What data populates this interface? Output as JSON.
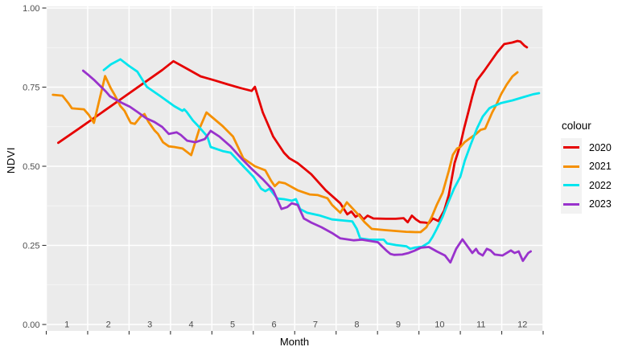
{
  "figure": {
    "y_title": "NDVI",
    "x_title": "Month",
    "background": "#FFFFFF",
    "panel_background": "#EBEBEB",
    "gridline_color": "#FFFFFF",
    "axis_text_color": "#4D4D4D",
    "tick_color": "#333333"
  },
  "legend": {
    "title": "colour",
    "key_background": "#F2F2F2",
    "entries": [
      {
        "label": "2020",
        "color": "#E60000"
      },
      {
        "label": "2021",
        "color": "#F59000"
      },
      {
        "label": "2022",
        "color": "#00E5EE"
      },
      {
        "label": "2023",
        "color": "#9932CC"
      }
    ]
  },
  "chart_data": {
    "type": "line",
    "title": "",
    "xlabel": "Month",
    "ylabel": "NDVI",
    "xlim": [
      1,
      13
    ],
    "ylim": [
      0,
      1
    ],
    "grid": true,
    "legend_position": "right",
    "y_major_ticks": [
      0,
      0.25,
      0.5,
      0.75,
      1.0
    ],
    "y_tick_labels": [
      "0.00",
      "0.25",
      "0.50",
      "0.75",
      "1.00"
    ],
    "y_minor_ticks": [
      0.125,
      0.375,
      0.625,
      0.875
    ],
    "x_gridlines": [
      1,
      2,
      3,
      4,
      5,
      6,
      7,
      8,
      9,
      10,
      11,
      12,
      13
    ],
    "x_tick_labels": [
      "1",
      "2",
      "3",
      "4",
      "5",
      "6",
      "7",
      "8",
      "9",
      "10",
      "11",
      "12"
    ],
    "x_label_positions": [
      1.5,
      2.5,
      3.5,
      4.5,
      5.5,
      6.5,
      7.5,
      8.5,
      9.5,
      10.5,
      11.5,
      12.5
    ],
    "series": [
      {
        "name": "2020",
        "color": "#E60000",
        "points": [
          [
            1.29,
            0.574
          ],
          [
            1.8,
            0.62
          ],
          [
            2.3,
            0.666
          ],
          [
            2.8,
            0.712
          ],
          [
            3.3,
            0.758
          ],
          [
            3.8,
            0.804
          ],
          [
            4.07,
            0.832
          ],
          [
            4.4,
            0.808
          ],
          [
            4.73,
            0.784
          ],
          [
            5.05,
            0.772
          ],
          [
            5.38,
            0.759
          ],
          [
            5.67,
            0.748
          ],
          [
            5.96,
            0.738
          ],
          [
            6.04,
            0.751
          ],
          [
            6.23,
            0.67
          ],
          [
            6.48,
            0.594
          ],
          [
            6.74,
            0.543
          ],
          [
            6.87,
            0.525
          ],
          [
            7.07,
            0.51
          ],
          [
            7.4,
            0.475
          ],
          [
            7.75,
            0.424
          ],
          [
            8.1,
            0.383
          ],
          [
            8.27,
            0.348
          ],
          [
            8.37,
            0.357
          ],
          [
            8.47,
            0.34
          ],
          [
            8.56,
            0.348
          ],
          [
            8.66,
            0.332
          ],
          [
            8.76,
            0.344
          ],
          [
            8.9,
            0.335
          ],
          [
            9.2,
            0.334
          ],
          [
            9.44,
            0.334
          ],
          [
            9.63,
            0.336
          ],
          [
            9.73,
            0.323
          ],
          [
            9.83,
            0.344
          ],
          [
            9.93,
            0.332
          ],
          [
            10.03,
            0.323
          ],
          [
            10.15,
            0.322
          ],
          [
            10.24,
            0.32
          ],
          [
            10.34,
            0.335
          ],
          [
            10.47,
            0.327
          ],
          [
            10.61,
            0.36
          ],
          [
            10.72,
            0.409
          ],
          [
            10.86,
            0.51
          ],
          [
            11.0,
            0.568
          ],
          [
            11.09,
            0.619
          ],
          [
            11.19,
            0.67
          ],
          [
            11.29,
            0.721
          ],
          [
            11.4,
            0.771
          ],
          [
            11.58,
            0.802
          ],
          [
            11.73,
            0.83
          ],
          [
            11.89,
            0.86
          ],
          [
            12.06,
            0.886
          ],
          [
            12.26,
            0.891
          ],
          [
            12.38,
            0.896
          ],
          [
            12.45,
            0.894
          ],
          [
            12.55,
            0.881
          ],
          [
            12.61,
            0.876
          ]
        ]
      },
      {
        "name": "2021",
        "color": "#F59000",
        "points": [
          [
            1.16,
            0.726
          ],
          [
            1.39,
            0.723
          ],
          [
            1.53,
            0.7
          ],
          [
            1.62,
            0.683
          ],
          [
            1.91,
            0.68
          ],
          [
            2.03,
            0.662
          ],
          [
            2.15,
            0.637
          ],
          [
            2.42,
            0.785
          ],
          [
            2.56,
            0.746
          ],
          [
            2.65,
            0.726
          ],
          [
            2.79,
            0.69
          ],
          [
            2.89,
            0.675
          ],
          [
            2.98,
            0.652
          ],
          [
            3.04,
            0.637
          ],
          [
            3.14,
            0.634
          ],
          [
            3.28,
            0.657
          ],
          [
            3.37,
            0.665
          ],
          [
            3.47,
            0.64
          ],
          [
            3.61,
            0.614
          ],
          [
            3.7,
            0.602
          ],
          [
            3.82,
            0.576
          ],
          [
            3.96,
            0.563
          ],
          [
            4.09,
            0.561
          ],
          [
            4.29,
            0.556
          ],
          [
            4.5,
            0.535
          ],
          [
            4.7,
            0.619
          ],
          [
            4.87,
            0.67
          ],
          [
            5.26,
            0.627
          ],
          [
            5.51,
            0.594
          ],
          [
            5.76,
            0.525
          ],
          [
            6.04,
            0.5
          ],
          [
            6.29,
            0.487
          ],
          [
            6.43,
            0.454
          ],
          [
            6.52,
            0.437
          ],
          [
            6.62,
            0.45
          ],
          [
            6.77,
            0.446
          ],
          [
            7.07,
            0.424
          ],
          [
            7.36,
            0.411
          ],
          [
            7.56,
            0.409
          ],
          [
            7.79,
            0.399
          ],
          [
            7.9,
            0.378
          ],
          [
            8.1,
            0.353
          ],
          [
            8.26,
            0.386
          ],
          [
            8.53,
            0.348
          ],
          [
            8.69,
            0.323
          ],
          [
            8.86,
            0.302
          ],
          [
            9.21,
            0.298
          ],
          [
            9.69,
            0.293
          ],
          [
            9.92,
            0.292
          ],
          [
            10.04,
            0.292
          ],
          [
            10.18,
            0.307
          ],
          [
            10.31,
            0.34
          ],
          [
            10.43,
            0.378
          ],
          [
            10.57,
            0.416
          ],
          [
            10.72,
            0.485
          ],
          [
            10.82,
            0.536
          ],
          [
            10.92,
            0.556
          ],
          [
            11.0,
            0.561
          ],
          [
            11.11,
            0.577
          ],
          [
            11.25,
            0.59
          ],
          [
            11.38,
            0.602
          ],
          [
            11.49,
            0.615
          ],
          [
            11.6,
            0.619
          ],
          [
            11.77,
            0.67
          ],
          [
            11.87,
            0.695
          ],
          [
            11.99,
            0.729
          ],
          [
            12.12,
            0.758
          ],
          [
            12.26,
            0.784
          ],
          [
            12.38,
            0.797
          ]
        ]
      },
      {
        "name": "2022",
        "color": "#00E5EE",
        "points": [
          [
            2.39,
            0.804
          ],
          [
            2.56,
            0.822
          ],
          [
            2.79,
            0.838
          ],
          [
            2.85,
            0.832
          ],
          [
            3.0,
            0.817
          ],
          [
            3.2,
            0.799
          ],
          [
            3.43,
            0.751
          ],
          [
            3.76,
            0.721
          ],
          [
            4.09,
            0.69
          ],
          [
            4.29,
            0.675
          ],
          [
            4.33,
            0.68
          ],
          [
            4.39,
            0.672
          ],
          [
            4.54,
            0.645
          ],
          [
            4.67,
            0.627
          ],
          [
            4.89,
            0.594
          ],
          [
            4.97,
            0.561
          ],
          [
            5.26,
            0.548
          ],
          [
            5.45,
            0.543
          ],
          [
            5.76,
            0.5
          ],
          [
            6.0,
            0.467
          ],
          [
            6.19,
            0.429
          ],
          [
            6.29,
            0.421
          ],
          [
            6.39,
            0.429
          ],
          [
            6.58,
            0.398
          ],
          [
            6.74,
            0.396
          ],
          [
            6.93,
            0.391
          ],
          [
            7.03,
            0.396
          ],
          [
            7.13,
            0.365
          ],
          [
            7.3,
            0.353
          ],
          [
            7.59,
            0.345
          ],
          [
            7.9,
            0.332
          ],
          [
            8.39,
            0.326
          ],
          [
            8.5,
            0.302
          ],
          [
            8.58,
            0.272
          ],
          [
            8.8,
            0.268
          ],
          [
            9.15,
            0.268
          ],
          [
            9.23,
            0.256
          ],
          [
            9.45,
            0.251
          ],
          [
            9.7,
            0.247
          ],
          [
            9.79,
            0.239
          ],
          [
            9.9,
            0.243
          ],
          [
            10.08,
            0.246
          ],
          [
            10.24,
            0.259
          ],
          [
            10.33,
            0.277
          ],
          [
            10.43,
            0.302
          ],
          [
            10.57,
            0.34
          ],
          [
            10.7,
            0.383
          ],
          [
            10.85,
            0.43
          ],
          [
            11.0,
            0.467
          ],
          [
            11.11,
            0.518
          ],
          [
            11.25,
            0.568
          ],
          [
            11.4,
            0.619
          ],
          [
            11.54,
            0.657
          ],
          [
            11.7,
            0.683
          ],
          [
            11.77,
            0.688
          ],
          [
            11.99,
            0.7
          ],
          [
            12.26,
            0.708
          ],
          [
            12.51,
            0.718
          ],
          [
            12.77,
            0.728
          ],
          [
            12.9,
            0.731
          ]
        ]
      },
      {
        "name": "2023",
        "color": "#9932CC",
        "points": [
          [
            1.89,
            0.802
          ],
          [
            2.01,
            0.789
          ],
          [
            2.17,
            0.771
          ],
          [
            2.3,
            0.754
          ],
          [
            2.44,
            0.736
          ],
          [
            2.54,
            0.721
          ],
          [
            2.65,
            0.713
          ],
          [
            2.83,
            0.7
          ],
          [
            3.02,
            0.688
          ],
          [
            3.22,
            0.67
          ],
          [
            3.41,
            0.652
          ],
          [
            3.61,
            0.64
          ],
          [
            3.8,
            0.624
          ],
          [
            3.96,
            0.602
          ],
          [
            4.15,
            0.607
          ],
          [
            4.25,
            0.599
          ],
          [
            4.4,
            0.581
          ],
          [
            4.6,
            0.576
          ],
          [
            4.83,
            0.586
          ],
          [
            4.97,
            0.612
          ],
          [
            5.18,
            0.594
          ],
          [
            5.45,
            0.563
          ],
          [
            5.71,
            0.525
          ],
          [
            5.96,
            0.492
          ],
          [
            6.23,
            0.459
          ],
          [
            6.48,
            0.424
          ],
          [
            6.68,
            0.365
          ],
          [
            6.82,
            0.371
          ],
          [
            6.93,
            0.383
          ],
          [
            7.07,
            0.378
          ],
          [
            7.22,
            0.335
          ],
          [
            7.4,
            0.322
          ],
          [
            7.65,
            0.307
          ],
          [
            7.9,
            0.289
          ],
          [
            8.1,
            0.272
          ],
          [
            8.43,
            0.266
          ],
          [
            8.62,
            0.268
          ],
          [
            8.82,
            0.264
          ],
          [
            9.01,
            0.26
          ],
          [
            9.11,
            0.247
          ],
          [
            9.21,
            0.234
          ],
          [
            9.31,
            0.223
          ],
          [
            9.4,
            0.22
          ],
          [
            9.6,
            0.221
          ],
          [
            9.75,
            0.226
          ],
          [
            9.89,
            0.233
          ],
          [
            10.05,
            0.243
          ],
          [
            10.24,
            0.245
          ],
          [
            10.43,
            0.231
          ],
          [
            10.63,
            0.218
          ],
          [
            10.76,
            0.196
          ],
          [
            10.9,
            0.239
          ],
          [
            11.05,
            0.269
          ],
          [
            11.19,
            0.244
          ],
          [
            11.29,
            0.226
          ],
          [
            11.38,
            0.239
          ],
          [
            11.44,
            0.226
          ],
          [
            11.54,
            0.218
          ],
          [
            11.64,
            0.239
          ],
          [
            11.73,
            0.234
          ],
          [
            11.83,
            0.221
          ],
          [
            12.02,
            0.218
          ],
          [
            12.22,
            0.234
          ],
          [
            12.31,
            0.226
          ],
          [
            12.41,
            0.231
          ],
          [
            12.51,
            0.201
          ],
          [
            12.64,
            0.226
          ],
          [
            12.7,
            0.231
          ]
        ]
      }
    ]
  }
}
